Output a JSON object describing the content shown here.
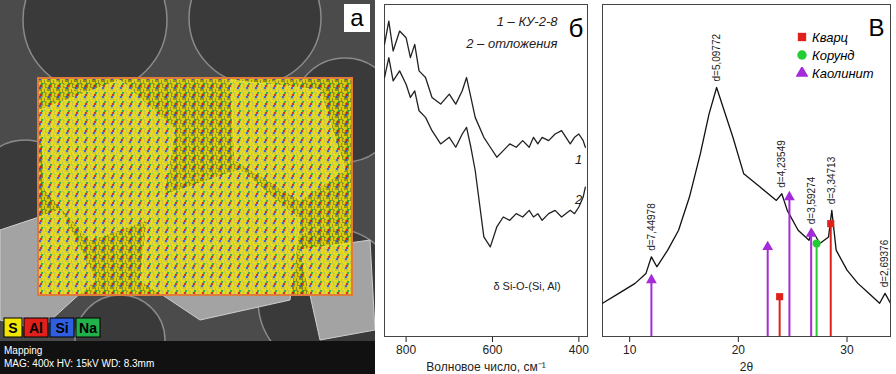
{
  "panel_a": {
    "label": "a",
    "elements": [
      {
        "symbol": "S",
        "color": "#f2e600"
      },
      {
        "symbol": "Al",
        "color": "#e0201b"
      },
      {
        "symbol": "Si",
        "color": "#2f5fe0"
      },
      {
        "symbol": "Na",
        "color": "#22b24a"
      }
    ],
    "caption": [
      "Mapping",
      "MAG: 400x  HV: 15kV  WD: 8.3mm"
    ]
  },
  "chart_data": [
    {
      "type": "line",
      "label": "б",
      "xlabel": "Волновое число, см⁻¹",
      "x": [
        850,
        840,
        830,
        815,
        800,
        790,
        780,
        770,
        755,
        740,
        720,
        700,
        685,
        670,
        660,
        650,
        640,
        620,
        605,
        590,
        575,
        560,
        545,
        530,
        515,
        505,
        495,
        485,
        470,
        455,
        440,
        420,
        410,
        400,
        390,
        385
      ],
      "series": [
        {
          "name": "1 – КУ-2-8",
          "label": "1",
          "color": "#222222",
          "values": [
            88,
            95,
            86,
            92,
            90,
            84,
            88,
            80,
            78,
            72,
            70,
            73,
            70,
            74,
            78,
            72,
            66,
            60,
            57,
            54,
            56,
            58,
            57,
            59,
            57,
            60,
            58,
            60,
            59,
            61,
            62,
            58,
            60,
            61,
            59,
            57
          ]
        },
        {
          "name": "2 – отложения",
          "label": "2",
          "color": "#222222",
          "values": [
            78,
            84,
            77,
            80,
            76,
            72,
            74,
            68,
            66,
            62,
            58,
            60,
            57,
            61,
            63,
            57,
            50,
            30,
            27,
            33,
            36,
            35,
            37,
            36,
            38,
            36,
            37,
            35,
            37,
            38,
            36,
            38,
            37,
            39,
            42,
            45
          ]
        }
      ],
      "xlim": [
        850,
        380
      ],
      "xticks": [
        800,
        600,
        400
      ],
      "ylim": [
        0,
        100
      ],
      "tick_labels": "x",
      "annotations": [
        {
          "text": "δ Si-O-(Si, Al)",
          "x": 520,
          "y": 15
        }
      ]
    },
    {
      "type": "line",
      "label": "В",
      "xlabel": "2θ",
      "color": "#111111",
      "x": [
        7.5,
        9,
        10.5,
        11.5,
        12.0,
        12.5,
        13.5,
        14.5,
        15.5,
        16.5,
        17.3,
        18.0,
        18.7,
        19.5,
        20.5,
        22,
        23.5,
        24.0,
        24.5,
        25.5,
        26.5,
        26.8,
        27.5,
        28.3,
        28.6,
        29,
        30,
        31,
        32,
        33,
        33.5,
        34
      ],
      "values": [
        10,
        13,
        16,
        19,
        24,
        21,
        26,
        32,
        42,
        55,
        67,
        75,
        68,
        60,
        49,
        45,
        41,
        43,
        38,
        32,
        29,
        32,
        28,
        30,
        38,
        26,
        20,
        16,
        13,
        10,
        13,
        10
      ],
      "xlim": [
        7.5,
        34
      ],
      "xticks": [
        10,
        20,
        30
      ],
      "ylim": [
        0,
        100
      ],
      "tick_labels": "x",
      "reference_peaks": [
        {
          "name": "Кварц",
          "color": "#e0201b",
          "marker": "square",
          "x": [
            23.8,
            28.5
          ],
          "values": [
            12,
            34
          ]
        },
        {
          "name": "Корунд",
          "color": "#22cc33",
          "marker": "circle",
          "x": [
            27.2
          ],
          "values": [
            28
          ]
        },
        {
          "name": "Каолинит",
          "color": "#a52bd9",
          "marker": "triangle",
          "x": [
            12.0,
            22.7,
            24.7,
            26.7
          ],
          "values": [
            17,
            27,
            42,
            31
          ]
        }
      ],
      "annotations": [
        {
          "text": "d=7,44978",
          "x": 12.0,
          "y": 24
        },
        {
          "text": "d=5,09772",
          "x": 18.0,
          "y": 75
        },
        {
          "text": "d=4,23549",
          "x": 24.0,
          "y": 43
        },
        {
          "text": "d=3,59274",
          "x": 26.8,
          "y": 32
        },
        {
          "text": "d=3,34713",
          "x": 28.6,
          "y": 38
        },
        {
          "text": "d=2,69376",
          "x": 33.5,
          "y": 13
        }
      ]
    }
  ]
}
